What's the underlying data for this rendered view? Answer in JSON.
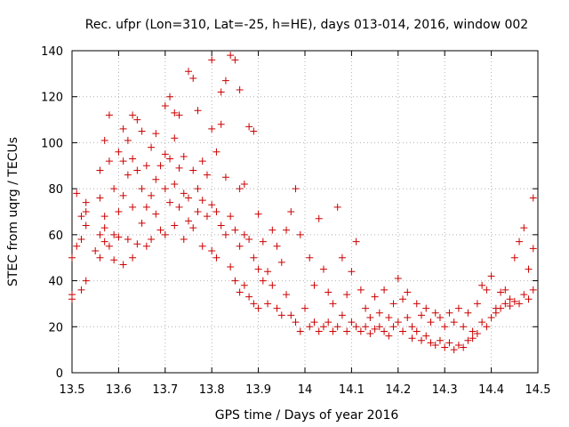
{
  "chart_data": {
    "type": "scatter",
    "title": "Rec. ufpr (Lon=310, Lat=-25, h=HE), days 013-014, 2016, window 002",
    "xlabel": "GPS time / Days of year 2016",
    "ylabel": "STEC from uqrg / TECUs",
    "xlim": [
      13.5,
      14.5
    ],
    "ylim": [
      0,
      140
    ],
    "xticks": [
      "13.5",
      "13.6",
      "13.7",
      "13.8",
      "13.9",
      "14",
      "14.1",
      "14.2",
      "14.3",
      "14.4",
      "14.5"
    ],
    "yticks": [
      "0",
      "20",
      "40",
      "60",
      "80",
      "100",
      "120",
      "140"
    ],
    "grid": true,
    "marker": "+",
    "color": "#cc0000",
    "points": [
      [
        13.5,
        32
      ],
      [
        13.5,
        34
      ],
      [
        13.5,
        50
      ],
      [
        13.51,
        55
      ],
      [
        13.51,
        78
      ],
      [
        13.52,
        58
      ],
      [
        13.52,
        68
      ],
      [
        13.52,
        36
      ],
      [
        13.53,
        74
      ],
      [
        13.53,
        70
      ],
      [
        13.53,
        40
      ],
      [
        13.53,
        64
      ],
      [
        13.55,
        53
      ],
      [
        13.56,
        88
      ],
      [
        13.56,
        76
      ],
      [
        13.56,
        60
      ],
      [
        13.56,
        50
      ],
      [
        13.57,
        63
      ],
      [
        13.57,
        57
      ],
      [
        13.57,
        101
      ],
      [
        13.57,
        68
      ],
      [
        13.58,
        112
      ],
      [
        13.58,
        92
      ],
      [
        13.58,
        55
      ],
      [
        13.59,
        80
      ],
      [
        13.59,
        60
      ],
      [
        13.59,
        49
      ],
      [
        13.6,
        96
      ],
      [
        13.6,
        70
      ],
      [
        13.6,
        59
      ],
      [
        13.61,
        106
      ],
      [
        13.61,
        92
      ],
      [
        13.61,
        77
      ],
      [
        13.61,
        47
      ],
      [
        13.62,
        101
      ],
      [
        13.62,
        86
      ],
      [
        13.62,
        58
      ],
      [
        13.63,
        112
      ],
      [
        13.63,
        93
      ],
      [
        13.63,
        72
      ],
      [
        13.63,
        50
      ],
      [
        13.64,
        110
      ],
      [
        13.64,
        88
      ],
      [
        13.64,
        56
      ],
      [
        13.65,
        105
      ],
      [
        13.65,
        80
      ],
      [
        13.65,
        65
      ],
      [
        13.66,
        90
      ],
      [
        13.66,
        72
      ],
      [
        13.66,
        55
      ],
      [
        13.67,
        98
      ],
      [
        13.67,
        77
      ],
      [
        13.67,
        58
      ],
      [
        13.68,
        104
      ],
      [
        13.68,
        84
      ],
      [
        13.68,
        69
      ],
      [
        13.69,
        90
      ],
      [
        13.69,
        62
      ],
      [
        13.7,
        116
      ],
      [
        13.7,
        95
      ],
      [
        13.7,
        80
      ],
      [
        13.7,
        60
      ],
      [
        13.71,
        120
      ],
      [
        13.71,
        93
      ],
      [
        13.71,
        74
      ],
      [
        13.72,
        113
      ],
      [
        13.72,
        102
      ],
      [
        13.72,
        82
      ],
      [
        13.72,
        64
      ],
      [
        13.73,
        112
      ],
      [
        13.73,
        89
      ],
      [
        13.73,
        72
      ],
      [
        13.74,
        94
      ],
      [
        13.74,
        78
      ],
      [
        13.74,
        58
      ],
      [
        13.75,
        131
      ],
      [
        13.75,
        76
      ],
      [
        13.75,
        66
      ],
      [
        13.76,
        128
      ],
      [
        13.76,
        88
      ],
      [
        13.76,
        63
      ],
      [
        13.77,
        114
      ],
      [
        13.77,
        80
      ],
      [
        13.77,
        70
      ],
      [
        13.78,
        92
      ],
      [
        13.78,
        75
      ],
      [
        13.78,
        55
      ],
      [
        13.79,
        86
      ],
      [
        13.79,
        68
      ],
      [
        13.8,
        136
      ],
      [
        13.8,
        106
      ],
      [
        13.8,
        73
      ],
      [
        13.8,
        53
      ],
      [
        13.81,
        96
      ],
      [
        13.81,
        70
      ],
      [
        13.81,
        50
      ],
      [
        13.82,
        122
      ],
      [
        13.82,
        108
      ],
      [
        13.82,
        64
      ],
      [
        13.83,
        127
      ],
      [
        13.83,
        85
      ],
      [
        13.83,
        60
      ],
      [
        13.84,
        138
      ],
      [
        13.84,
        68
      ],
      [
        13.84,
        46
      ],
      [
        13.85,
        136
      ],
      [
        13.85,
        62
      ],
      [
        13.85,
        40
      ],
      [
        13.86,
        123
      ],
      [
        13.86,
        80
      ],
      [
        13.86,
        55
      ],
      [
        13.86,
        35
      ],
      [
        13.87,
        82
      ],
      [
        13.87,
        60
      ],
      [
        13.87,
        38
      ],
      [
        13.88,
        107
      ],
      [
        13.88,
        58
      ],
      [
        13.88,
        33
      ],
      [
        13.89,
        105
      ],
      [
        13.89,
        50
      ],
      [
        13.89,
        30
      ],
      [
        13.9,
        69
      ],
      [
        13.9,
        45
      ],
      [
        13.9,
        28
      ],
      [
        13.91,
        57
      ],
      [
        13.91,
        40
      ],
      [
        13.92,
        44
      ],
      [
        13.92,
        30
      ],
      [
        13.93,
        62
      ],
      [
        13.93,
        38
      ],
      [
        13.94,
        55
      ],
      [
        13.94,
        28
      ],
      [
        13.95,
        48
      ],
      [
        13.95,
        25
      ],
      [
        13.96,
        62
      ],
      [
        13.96,
        34
      ],
      [
        13.97,
        70
      ],
      [
        13.97,
        25
      ],
      [
        13.98,
        80
      ],
      [
        13.98,
        22
      ],
      [
        13.99,
        60
      ],
      [
        13.99,
        18
      ],
      [
        14.0,
        28
      ],
      [
        14.01,
        50
      ],
      [
        14.01,
        20
      ],
      [
        14.02,
        38
      ],
      [
        14.02,
        22
      ],
      [
        14.03,
        67
      ],
      [
        14.03,
        18
      ],
      [
        14.04,
        45
      ],
      [
        14.04,
        20
      ],
      [
        14.05,
        35
      ],
      [
        14.05,
        22
      ],
      [
        14.06,
        30
      ],
      [
        14.06,
        18
      ],
      [
        14.07,
        72
      ],
      [
        14.07,
        20
      ],
      [
        14.08,
        50
      ],
      [
        14.08,
        25
      ],
      [
        14.09,
        34
      ],
      [
        14.09,
        18
      ],
      [
        14.1,
        44
      ],
      [
        14.1,
        22
      ],
      [
        14.11,
        57
      ],
      [
        14.11,
        20
      ],
      [
        14.12,
        36
      ],
      [
        14.12,
        18
      ],
      [
        14.13,
        28
      ],
      [
        14.13,
        20
      ],
      [
        14.14,
        24
      ],
      [
        14.14,
        17
      ],
      [
        14.15,
        33
      ],
      [
        14.15,
        19
      ],
      [
        14.16,
        26
      ],
      [
        14.16,
        20
      ],
      [
        14.17,
        36
      ],
      [
        14.17,
        18
      ],
      [
        14.18,
        24
      ],
      [
        14.18,
        16
      ],
      [
        14.19,
        30
      ],
      [
        14.19,
        20
      ],
      [
        14.2,
        41
      ],
      [
        14.2,
        22
      ],
      [
        14.21,
        32
      ],
      [
        14.21,
        18
      ],
      [
        14.22,
        35
      ],
      [
        14.22,
        24
      ],
      [
        14.23,
        20
      ],
      [
        14.23,
        15
      ],
      [
        14.24,
        30
      ],
      [
        14.24,
        18
      ],
      [
        14.25,
        25
      ],
      [
        14.25,
        14
      ],
      [
        14.26,
        28
      ],
      [
        14.26,
        16
      ],
      [
        14.27,
        22
      ],
      [
        14.27,
        13
      ],
      [
        14.28,
        26
      ],
      [
        14.28,
        12
      ],
      [
        14.29,
        24
      ],
      [
        14.29,
        14
      ],
      [
        14.3,
        20
      ],
      [
        14.3,
        11
      ],
      [
        14.31,
        26
      ],
      [
        14.31,
        13
      ],
      [
        14.32,
        22
      ],
      [
        14.32,
        10
      ],
      [
        14.33,
        28
      ],
      [
        14.33,
        12
      ],
      [
        14.34,
        20
      ],
      [
        14.34,
        11
      ],
      [
        14.35,
        26
      ],
      [
        14.35,
        14
      ],
      [
        14.36,
        18
      ],
      [
        14.36,
        15
      ],
      [
        14.37,
        30
      ],
      [
        14.37,
        17
      ],
      [
        14.38,
        38
      ],
      [
        14.38,
        22
      ],
      [
        14.39,
        36
      ],
      [
        14.39,
        20
      ],
      [
        14.4,
        42
      ],
      [
        14.4,
        24
      ],
      [
        14.41,
        28
      ],
      [
        14.41,
        26
      ],
      [
        14.42,
        35
      ],
      [
        14.42,
        28
      ],
      [
        14.43,
        36
      ],
      [
        14.43,
        30
      ],
      [
        14.44,
        32
      ],
      [
        14.44,
        29
      ],
      [
        14.45,
        50
      ],
      [
        14.45,
        31
      ],
      [
        14.46,
        57
      ],
      [
        14.46,
        30
      ],
      [
        14.47,
        63
      ],
      [
        14.47,
        34
      ],
      [
        14.48,
        45
      ],
      [
        14.48,
        32
      ],
      [
        14.49,
        76
      ],
      [
        14.49,
        54
      ],
      [
        14.49,
        36
      ]
    ]
  }
}
